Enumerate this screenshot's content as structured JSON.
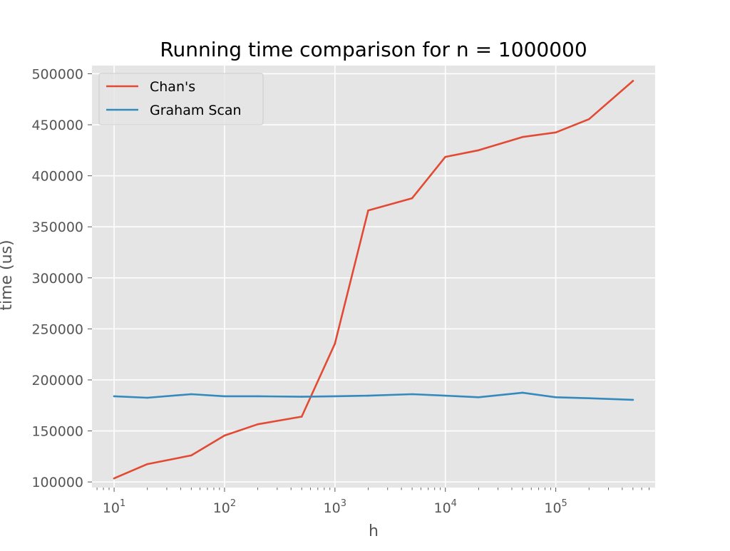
{
  "chart_data": {
    "type": "line",
    "title": "Running time comparison for n = 1000000",
    "xlabel": "h",
    "ylabel": "time (us)",
    "xscale": "log",
    "xlim": [
      6.3,
      794328
    ],
    "ylim": [
      94500,
      508000
    ],
    "x_ticks": [
      10,
      100,
      1000,
      10000,
      100000
    ],
    "x_tick_labels": [
      {
        "base": "10",
        "exp": "1"
      },
      {
        "base": "10",
        "exp": "2"
      },
      {
        "base": "10",
        "exp": "3"
      },
      {
        "base": "10",
        "exp": "4"
      },
      {
        "base": "10",
        "exp": "5"
      }
    ],
    "y_ticks": [
      100000,
      150000,
      200000,
      250000,
      300000,
      350000,
      400000,
      450000,
      500000
    ],
    "y_tick_labels": [
      "100000",
      "150000",
      "200000",
      "250000",
      "300000",
      "350000",
      "400000",
      "450000",
      "500000"
    ],
    "grid": true,
    "legend_position": "top-left",
    "background": "#e5e5e5",
    "series": [
      {
        "name": "Chan's",
        "color": "#e24a33",
        "x": [
          10,
          20,
          50,
          100,
          200,
          500,
          1000,
          2000,
          5000,
          10000,
          20000,
          50000,
          100000,
          200000,
          500000
        ],
        "y": [
          103500,
          117500,
          126000,
          145500,
          156500,
          164000,
          235500,
          366000,
          378000,
          418500,
          425000,
          438000,
          442500,
          455500,
          493000
        ]
      },
      {
        "name": "Graham Scan",
        "color": "#348abd",
        "x": [
          10,
          20,
          50,
          100,
          200,
          500,
          1000,
          2000,
          5000,
          10000,
          20000,
          50000,
          100000,
          200000,
          500000
        ],
        "y": [
          184000,
          182500,
          186000,
          184000,
          184000,
          183500,
          184000,
          184500,
          186000,
          184500,
          183000,
          187500,
          183000,
          182000,
          180500
        ]
      }
    ]
  }
}
